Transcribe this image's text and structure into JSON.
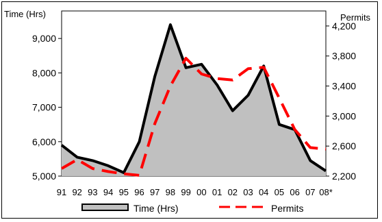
{
  "chart_data": {
    "type": "area",
    "categories": [
      "91",
      "92",
      "93",
      "94",
      "95",
      "96",
      "97",
      "98",
      "99",
      "00",
      "01",
      "02",
      "03",
      "04",
      "05",
      "06",
      "07",
      "08*"
    ],
    "series": [
      {
        "name": "Time (Hrs)",
        "kind": "area",
        "axis": "left",
        "values": [
          5900,
          5550,
          5450,
          5300,
          5100,
          6000,
          7900,
          9400,
          8150,
          8250,
          7650,
          6900,
          7350,
          8200,
          6500,
          6350,
          5450,
          5150
        ]
      },
      {
        "name": "Permits",
        "kind": "line",
        "axis": "right",
        "values": [
          2300,
          2420,
          2300,
          2260,
          2230,
          2210,
          2900,
          3400,
          3770,
          3560,
          3500,
          3480,
          3630,
          3650,
          3240,
          2820,
          2580,
          2560
        ]
      }
    ],
    "left_axis": {
      "label": "Time (Hrs)",
      "ylim": [
        5000,
        9800
      ],
      "ticks": [
        5000,
        6000,
        7000,
        8000,
        9000
      ],
      "tick_labels": [
        "5,000",
        "6,000",
        "7,000",
        "8,000",
        "9,000"
      ]
    },
    "right_axis": {
      "label": "Permits",
      "ylim": [
        2200,
        4400
      ],
      "ticks": [
        2200,
        2600,
        3000,
        3400,
        3800,
        4200
      ],
      "tick_labels": [
        "2,200",
        "2,600",
        "3,000",
        "3,400",
        "3,800",
        "4,200"
      ]
    },
    "grid": false,
    "legend_position": "bottom",
    "colors": {
      "area_fill": "#c0c0c0",
      "area_line": "#000000",
      "permits_line": "#ff0000"
    }
  }
}
